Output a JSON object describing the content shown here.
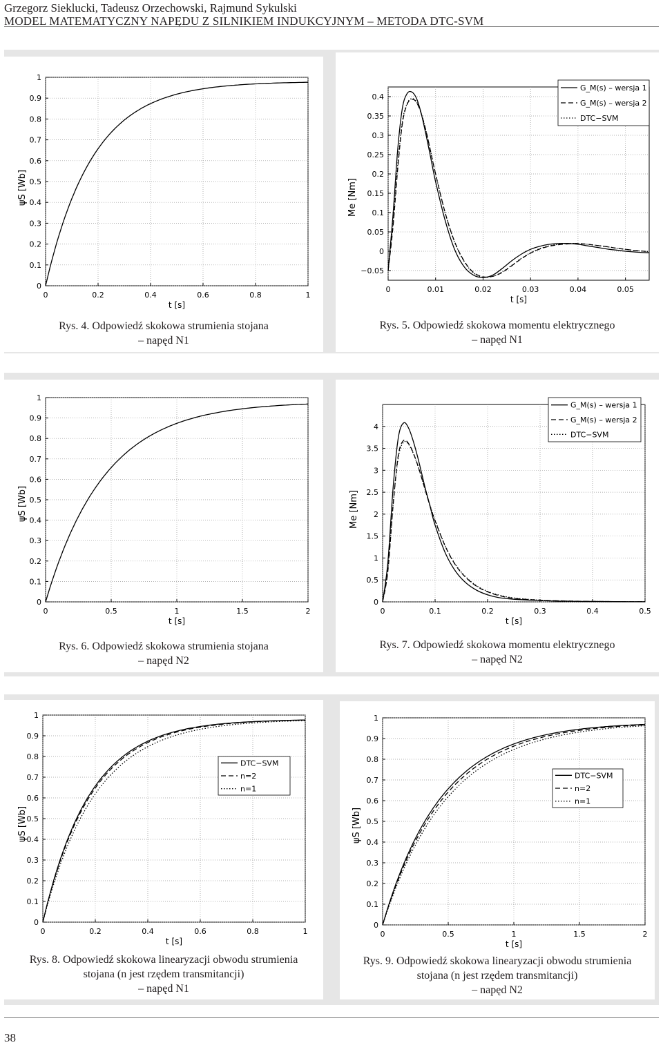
{
  "header": {
    "authors": "Grzegorz Sieklucki, Tadeusz Orzechowski, Rajmund Sykulski",
    "title": "MODEL MATEMATYCZNY NAPĘDU Z SILNIKIEM INDUKCYJNYM – METODA DTC-SVM"
  },
  "page_number": "38",
  "figures": [
    {
      "label": "Rys. 4.",
      "caption": "Odpowiedź skokowa strumienia stojana",
      "caption2": "– napęd N1"
    },
    {
      "label": "Rys. 5.",
      "caption": "Odpowiedź skokowa momentu elektrycznego",
      "caption2": "– napęd N1"
    },
    {
      "label": "Rys. 6.",
      "caption": "Odpowiedź skokowa strumienia stojana",
      "caption2": "– napęd N2"
    },
    {
      "label": "Rys. 7.",
      "caption": "Odpowiedź skokowa momentu elektrycznego",
      "caption2": "– napęd N2"
    },
    {
      "label": "Rys. 8.",
      "caption": "Odpowiedź skokowa linearyzacji obwodu strumienia",
      "caption2": "stojana (n jest rzędem transmitancji)",
      "caption3": "– napęd N1"
    },
    {
      "label": "Rys. 9.",
      "caption": "Odpowiedź skokowa linearyzacji obwodu strumienia",
      "caption2": "stojana (n jest rzędem transmitancji)",
      "caption3": "– napęd N2"
    }
  ],
  "chart_data": [
    {
      "type": "line",
      "id": "fig4",
      "xlabel": "t [s]",
      "ylabel": "ψS [Wb]",
      "xlim": [
        0,
        1
      ],
      "ylim": [
        0,
        1
      ],
      "xticks": [
        "0",
        "0.2",
        "0.4",
        "0.6",
        "0.8",
        "1"
      ],
      "yticks": [
        "0",
        "0.1",
        "0.2",
        "0.3",
        "0.4",
        "0.5",
        "0.6",
        "0.7",
        "0.8",
        "0.9",
        "1"
      ],
      "grid": true,
      "series": [
        {
          "model": "exp",
          "final": 0.98,
          "tau": 0.18,
          "style": "solid"
        }
      ]
    },
    {
      "type": "line",
      "id": "fig5",
      "xlabel": "t [s]",
      "ylabel": "Me [Nm]",
      "xlim": [
        0,
        0.055
      ],
      "ylim": [
        -0.075,
        0.425
      ],
      "xticks": [
        "0",
        "0.01",
        "0.02",
        "0.03",
        "0.04",
        "0.05"
      ],
      "yticks": [
        "−0.05",
        "0",
        "0.05",
        "0.1",
        "0.15",
        "0.2",
        "0.25",
        "0.3",
        "0.35",
        "0.4"
      ],
      "grid": true,
      "legend": {
        "position": "top-right",
        "entries": [
          "G_M(s) – wersja 1",
          "G_M(s) – wersja 2",
          "DTC−SVM"
        ]
      },
      "series": [
        {
          "x": [
            0,
            0.001,
            0.002,
            0.003,
            0.004,
            0.005,
            0.006,
            0.007,
            0.008,
            0.009,
            0.01,
            0.012,
            0.014,
            0.016,
            0.018,
            0.02,
            0.022,
            0.024,
            0.026,
            0.028,
            0.03,
            0.032,
            0.034,
            0.036,
            0.038,
            0.04,
            0.042,
            0.044,
            0.046,
            0.048,
            0.05,
            0.052,
            0.055
          ],
          "y": [
            -0.05,
            0.09,
            0.26,
            0.37,
            0.408,
            0.412,
            0.395,
            0.355,
            0.3,
            0.24,
            0.18,
            0.08,
            0.005,
            -0.04,
            -0.062,
            -0.068,
            -0.062,
            -0.045,
            -0.025,
            -0.008,
            0.005,
            0.013,
            0.018,
            0.02,
            0.02,
            0.018,
            0.014,
            0.01,
            0.006,
            0.003,
            0.0,
            -0.002,
            -0.004
          ],
          "style": "solid"
        },
        {
          "x": [
            0,
            0.001,
            0.002,
            0.003,
            0.004,
            0.005,
            0.006,
            0.007,
            0.008,
            0.009,
            0.01,
            0.012,
            0.014,
            0.016,
            0.018,
            0.02,
            0.022,
            0.024,
            0.026,
            0.028,
            0.03,
            0.032,
            0.034,
            0.036,
            0.038,
            0.04,
            0.042,
            0.044,
            0.046,
            0.048,
            0.05,
            0.052,
            0.055
          ],
          "y": [
            -0.05,
            0.06,
            0.21,
            0.33,
            0.38,
            0.393,
            0.385,
            0.355,
            0.31,
            0.255,
            0.2,
            0.1,
            0.025,
            -0.025,
            -0.055,
            -0.066,
            -0.065,
            -0.055,
            -0.038,
            -0.02,
            -0.005,
            0.006,
            0.013,
            0.017,
            0.019,
            0.02,
            0.018,
            0.015,
            0.012,
            0.008,
            0.005,
            0.002,
            -0.001
          ],
          "style": "dashed"
        },
        {
          "x": [
            0,
            0.001,
            0.002,
            0.003,
            0.004,
            0.005,
            0.006,
            0.007,
            0.008,
            0.009,
            0.01,
            0.012,
            0.014,
            0.016,
            0.018,
            0.02,
            0.022,
            0.024,
            0.026,
            0.028,
            0.03,
            0.032,
            0.034,
            0.036,
            0.038,
            0.04,
            0.042,
            0.044,
            0.046,
            0.048,
            0.05,
            0.052,
            0.055
          ],
          "y": [
            -0.05,
            0.07,
            0.22,
            0.335,
            0.382,
            0.395,
            0.386,
            0.356,
            0.31,
            0.256,
            0.2,
            0.1,
            0.024,
            -0.026,
            -0.056,
            -0.067,
            -0.065,
            -0.054,
            -0.037,
            -0.019,
            -0.004,
            0.007,
            0.014,
            0.018,
            0.02,
            0.02,
            0.018,
            0.015,
            0.012,
            0.008,
            0.005,
            0.002,
            -0.001
          ],
          "style": "dotted"
        }
      ]
    },
    {
      "type": "line",
      "id": "fig6",
      "xlabel": "t [s]",
      "ylabel": "ψS [Wb]",
      "xlim": [
        0,
        2
      ],
      "ylim": [
        0,
        1
      ],
      "xticks": [
        "0",
        "0.5",
        "1",
        "1.5",
        "2"
      ],
      "yticks": [
        "0",
        "0.1",
        "0.2",
        "0.3",
        "0.4",
        "0.5",
        "0.6",
        "0.7",
        "0.8",
        "0.9",
        "1"
      ],
      "grid": true,
      "series": [
        {
          "model": "exp",
          "final": 0.98,
          "tau": 0.45,
          "style": "solid"
        }
      ]
    },
    {
      "type": "line",
      "id": "fig7",
      "xlabel": "t [s]",
      "ylabel": "Me [Nm]",
      "xlim": [
        0,
        0.5
      ],
      "ylim": [
        0,
        4.5
      ],
      "xticks": [
        "0",
        "0.1",
        "0.2",
        "0.3",
        "0.4",
        "0.5"
      ],
      "yticks": [
        "0",
        "0.5",
        "1",
        "1.5",
        "2",
        "2.5",
        "3",
        "3.5",
        "4"
      ],
      "grid": true,
      "legend": {
        "position": "top-right",
        "entries": [
          "G_M(s) – wersja 1",
          "G_M(s) – wersja 2",
          "DTC−SVM"
        ]
      },
      "series": [
        {
          "x": [
            0,
            0.01,
            0.02,
            0.03,
            0.04,
            0.05,
            0.06,
            0.07,
            0.08,
            0.09,
            0.1,
            0.12,
            0.14,
            0.16,
            0.18,
            0.2,
            0.22,
            0.25,
            0.3,
            0.35,
            0.4,
            0.45,
            0.5
          ],
          "y": [
            0,
            0.9,
            2.6,
            3.75,
            4.08,
            3.95,
            3.6,
            3.15,
            2.65,
            2.2,
            1.75,
            1.1,
            0.68,
            0.42,
            0.26,
            0.16,
            0.1,
            0.06,
            0.03,
            0.015,
            0.01,
            0.005,
            0.003
          ],
          "style": "solid"
        },
        {
          "x": [
            0,
            0.01,
            0.02,
            0.03,
            0.04,
            0.05,
            0.06,
            0.07,
            0.08,
            0.09,
            0.1,
            0.12,
            0.14,
            0.16,
            0.18,
            0.2,
            0.22,
            0.25,
            0.3,
            0.35,
            0.4,
            0.45,
            0.5
          ],
          "y": [
            0,
            0.7,
            2.2,
            3.35,
            3.68,
            3.6,
            3.35,
            3.0,
            2.6,
            2.2,
            1.85,
            1.25,
            0.82,
            0.54,
            0.35,
            0.23,
            0.15,
            0.08,
            0.04,
            0.02,
            0.01,
            0.005,
            0.003
          ],
          "style": "dashed"
        },
        {
          "x": [
            0,
            0.01,
            0.02,
            0.03,
            0.04,
            0.05,
            0.06,
            0.07,
            0.08,
            0.09,
            0.1,
            0.12,
            0.14,
            0.16,
            0.18,
            0.2,
            0.22,
            0.25,
            0.3,
            0.35,
            0.4,
            0.45,
            0.5
          ],
          "y": [
            0,
            0.72,
            2.22,
            3.3,
            3.64,
            3.58,
            3.34,
            3.0,
            2.6,
            2.21,
            1.86,
            1.26,
            0.83,
            0.55,
            0.36,
            0.24,
            0.16,
            0.09,
            0.04,
            0.02,
            0.01,
            0.005,
            0.003
          ],
          "style": "dotted"
        }
      ]
    },
    {
      "type": "line",
      "id": "fig8",
      "xlabel": "t [s]",
      "ylabel": "ψS [Wb]",
      "xlim": [
        0,
        1
      ],
      "ylim": [
        0,
        1
      ],
      "xticks": [
        "0",
        "0.2",
        "0.4",
        "0.6",
        "0.8",
        "1"
      ],
      "yticks": [
        "0",
        "0.1",
        "0.2",
        "0.3",
        "0.4",
        "0.5",
        "0.6",
        "0.7",
        "0.8",
        "0.9",
        "1"
      ],
      "grid": true,
      "legend": {
        "position": "center-right",
        "entries": [
          "DTC−SVM",
          "n=2",
          "n=1"
        ]
      },
      "series": [
        {
          "model": "exp",
          "final": 0.98,
          "tau": 0.18,
          "style": "solid"
        },
        {
          "model": "exp",
          "final": 0.98,
          "tau": 0.185,
          "style": "dashed"
        },
        {
          "model": "exp",
          "final": 0.98,
          "tau": 0.2,
          "style": "dotted"
        }
      ]
    },
    {
      "type": "line",
      "id": "fig9",
      "xlabel": "t [s]",
      "ylabel": "ψS [Wb]",
      "xlim": [
        0,
        2
      ],
      "ylim": [
        0,
        1
      ],
      "xticks": [
        "0",
        "0.5",
        "1",
        "1.5",
        "2"
      ],
      "yticks": [
        "0",
        "0.1",
        "0.2",
        "0.3",
        "0.4",
        "0.5",
        "0.6",
        "0.7",
        "0.8",
        "0.9",
        "1"
      ],
      "grid": true,
      "legend": {
        "position": "center-right",
        "entries": [
          "DTC−SVM",
          "n=2",
          "n=1"
        ]
      },
      "series": [
        {
          "model": "exp",
          "final": 0.98,
          "tau": 0.45,
          "style": "solid"
        },
        {
          "model": "exp",
          "final": 0.98,
          "tau": 0.47,
          "style": "dashed"
        },
        {
          "model": "exp",
          "final": 0.98,
          "tau": 0.5,
          "style": "dotted"
        }
      ]
    }
  ]
}
